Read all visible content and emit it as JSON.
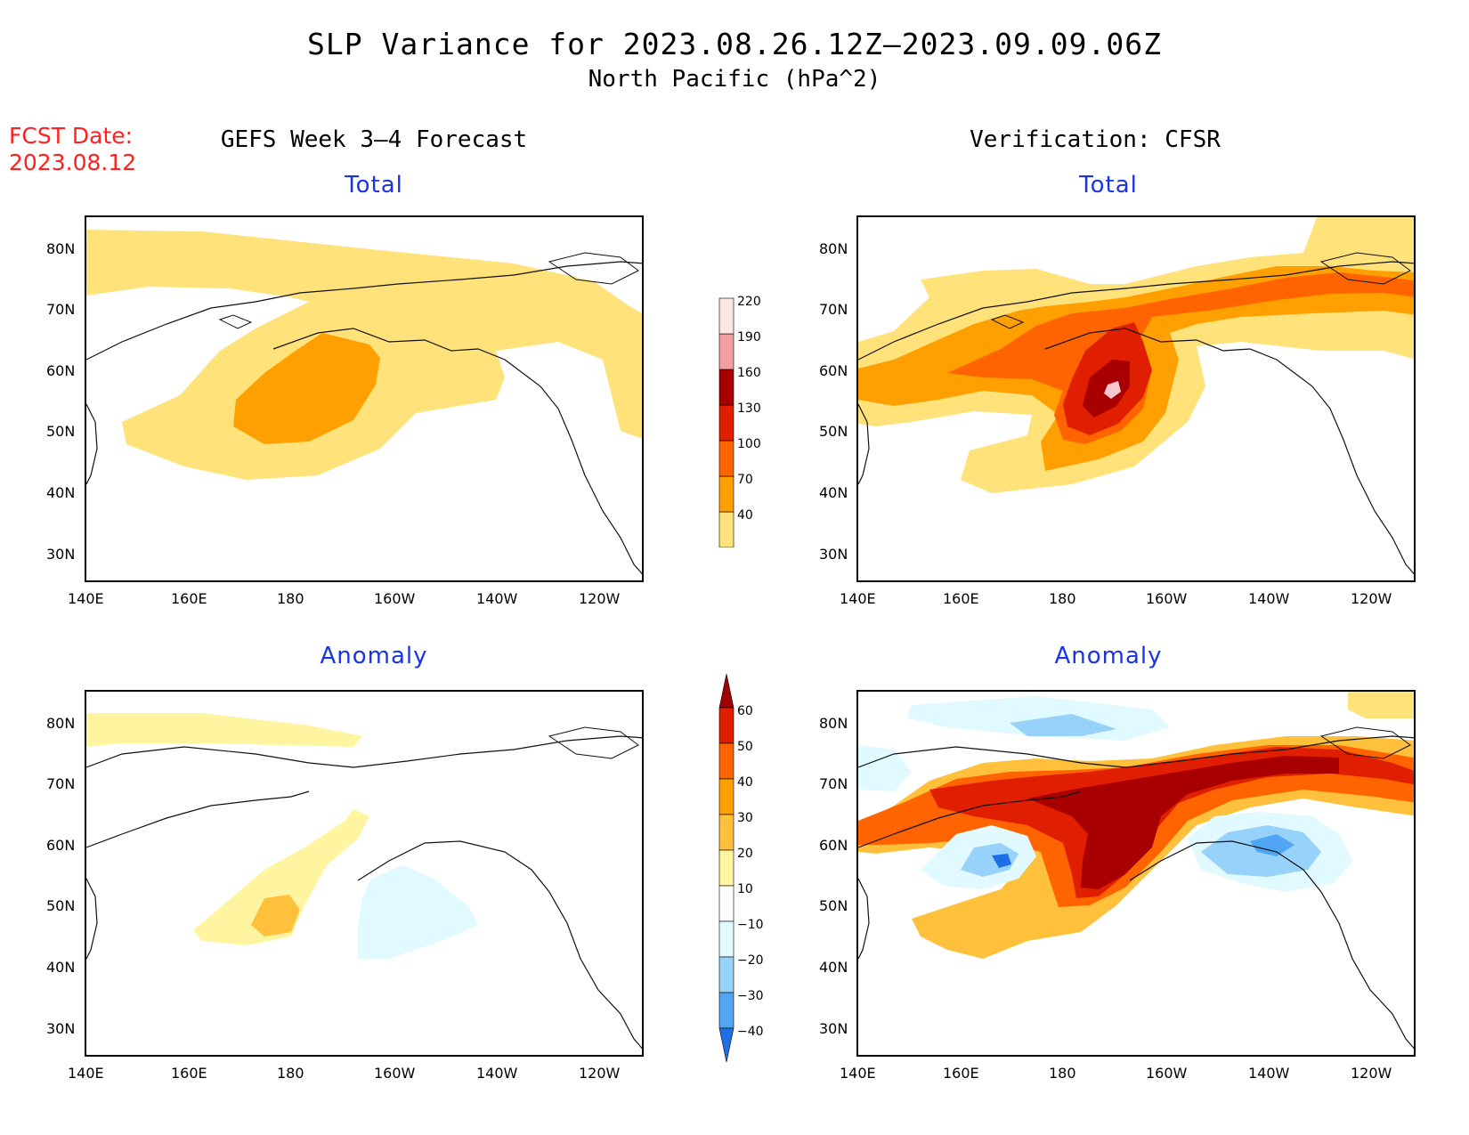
{
  "title": "SLP Variance for 2023.08.26.12Z–2023.09.09.06Z",
  "subtitle": "North Pacific (hPa^2)",
  "forecast_date": {
    "label": "FCST Date:",
    "value": "2023.08.12"
  },
  "left_column_title": "GEFS Week 3–4 Forecast",
  "right_column_title": "Verification: CFSR",
  "panel_titles": {
    "total": "Total",
    "anomaly": "Anomaly"
  },
  "lat_ticks": [
    "80N",
    "70N",
    "60N",
    "50N",
    "40N",
    "30N"
  ],
  "lon_ticks": [
    "140E",
    "160E",
    "180",
    "160W",
    "140W",
    "120W"
  ],
  "total_colorbar": {
    "labels": [
      "40",
      "70",
      "100",
      "130",
      "160",
      "190",
      "220"
    ],
    "colors": [
      "#ffe27a",
      "#ffa000",
      "#ff6400",
      "#e01e00",
      "#a80000",
      "#f2a0a0",
      "#fde6e6"
    ]
  },
  "anomaly_colorbar": {
    "labels": [
      "60",
      "50",
      "40",
      "30",
      "20",
      "10",
      "−10",
      "−20",
      "−30",
      "−40"
    ],
    "colors": [
      "#a00000",
      "#e01e00",
      "#ff6400",
      "#ffa000",
      "#ffc03c",
      "#fff5a0",
      "#ffffff",
      "#e0faff",
      "#96d2fa",
      "#50a5f5",
      "#1e6ee6"
    ]
  }
}
